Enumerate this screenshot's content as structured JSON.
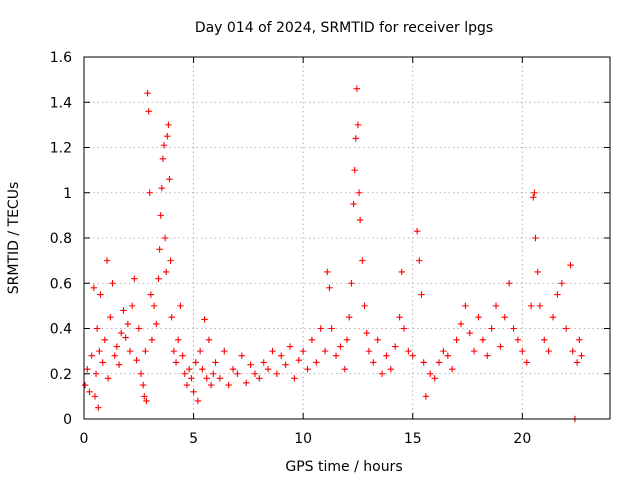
{
  "chart_data": {
    "type": "scatter",
    "title": "Day 014 of 2024, SRMTID for receiver lpgs",
    "xlabel": "GPS time / hours",
    "ylabel": "SRMTID / TECUs",
    "xlim": [
      0,
      24
    ],
    "ylim": [
      0,
      1.6
    ],
    "xticks": [
      0,
      5,
      10,
      15,
      20
    ],
    "yticks": [
      0,
      0.2,
      0.4,
      0.6,
      0.8,
      1,
      1.2,
      1.4,
      1.6
    ],
    "xtick_labels": [
      "0",
      "5",
      "10",
      "15",
      "20"
    ],
    "ytick_labels": [
      "0",
      "0.2",
      "0.4",
      "0.6",
      "0.8",
      "1",
      "1.2",
      "1.4",
      "1.6"
    ],
    "grid": true,
    "marker": "+",
    "color": "#ff0000",
    "series": [
      {
        "name": "SRMTID",
        "points": [
          [
            0.05,
            0.15
          ],
          [
            0.15,
            0.22
          ],
          [
            0.25,
            0.12
          ],
          [
            0.35,
            0.28
          ],
          [
            0.45,
            0.58
          ],
          [
            0.5,
            0.1
          ],
          [
            0.55,
            0.2
          ],
          [
            0.6,
            0.4
          ],
          [
            0.65,
            0.05
          ],
          [
            0.7,
            0.3
          ],
          [
            0.75,
            0.55
          ],
          [
            0.85,
            0.25
          ],
          [
            0.95,
            0.35
          ],
          [
            1.05,
            0.7
          ],
          [
            1.1,
            0.18
          ],
          [
            1.2,
            0.45
          ],
          [
            1.3,
            0.6
          ],
          [
            1.4,
            0.28
          ],
          [
            1.5,
            0.32
          ],
          [
            1.6,
            0.24
          ],
          [
            1.7,
            0.38
          ],
          [
            1.8,
            0.48
          ],
          [
            1.9,
            0.36
          ],
          [
            2.0,
            0.42
          ],
          [
            2.1,
            0.3
          ],
          [
            2.2,
            0.5
          ],
          [
            2.3,
            0.62
          ],
          [
            2.4,
            0.26
          ],
          [
            2.5,
            0.4
          ],
          [
            2.6,
            0.2
          ],
          [
            2.7,
            0.15
          ],
          [
            2.75,
            0.1
          ],
          [
            2.8,
            0.3
          ],
          [
            2.85,
            0.08
          ],
          [
            2.9,
            1.44
          ],
          [
            2.95,
            1.36
          ],
          [
            3.0,
            1.0
          ],
          [
            3.05,
            0.55
          ],
          [
            3.1,
            0.35
          ],
          [
            3.2,
            0.5
          ],
          [
            3.3,
            0.42
          ],
          [
            3.4,
            0.62
          ],
          [
            3.45,
            0.75
          ],
          [
            3.5,
            0.9
          ],
          [
            3.55,
            1.02
          ],
          [
            3.6,
            1.15
          ],
          [
            3.65,
            1.21
          ],
          [
            3.7,
            0.8
          ],
          [
            3.75,
            0.65
          ],
          [
            3.8,
            1.25
          ],
          [
            3.85,
            1.3
          ],
          [
            3.9,
            1.06
          ],
          [
            3.95,
            0.7
          ],
          [
            4.0,
            0.45
          ],
          [
            4.1,
            0.3
          ],
          [
            4.2,
            0.25
          ],
          [
            4.3,
            0.35
          ],
          [
            4.4,
            0.5
          ],
          [
            4.5,
            0.28
          ],
          [
            4.6,
            0.2
          ],
          [
            4.7,
            0.15
          ],
          [
            4.8,
            0.22
          ],
          [
            4.9,
            0.18
          ],
          [
            5.0,
            0.12
          ],
          [
            5.1,
            0.25
          ],
          [
            5.2,
            0.08
          ],
          [
            5.3,
            0.3
          ],
          [
            5.4,
            0.22
          ],
          [
            5.5,
            0.44
          ],
          [
            5.6,
            0.18
          ],
          [
            5.7,
            0.35
          ],
          [
            5.8,
            0.15
          ],
          [
            5.9,
            0.2
          ],
          [
            6.0,
            0.25
          ],
          [
            6.2,
            0.18
          ],
          [
            6.4,
            0.3
          ],
          [
            6.6,
            0.15
          ],
          [
            6.8,
            0.22
          ],
          [
            7.0,
            0.2
          ],
          [
            7.2,
            0.28
          ],
          [
            7.4,
            0.16
          ],
          [
            7.6,
            0.24
          ],
          [
            7.8,
            0.2
          ],
          [
            8.0,
            0.18
          ],
          [
            8.2,
            0.25
          ],
          [
            8.4,
            0.22
          ],
          [
            8.6,
            0.3
          ],
          [
            8.8,
            0.2
          ],
          [
            9.0,
            0.28
          ],
          [
            9.2,
            0.24
          ],
          [
            9.4,
            0.32
          ],
          [
            9.6,
            0.18
          ],
          [
            9.8,
            0.26
          ],
          [
            10.0,
            0.3
          ],
          [
            10.2,
            0.22
          ],
          [
            10.4,
            0.35
          ],
          [
            10.6,
            0.25
          ],
          [
            10.8,
            0.4
          ],
          [
            11.0,
            0.3
          ],
          [
            11.1,
            0.65
          ],
          [
            11.2,
            0.58
          ],
          [
            11.3,
            0.4
          ],
          [
            11.5,
            0.28
          ],
          [
            11.7,
            0.32
          ],
          [
            11.9,
            0.22
          ],
          [
            12.0,
            0.35
          ],
          [
            12.1,
            0.45
          ],
          [
            12.2,
            0.6
          ],
          [
            12.3,
            0.95
          ],
          [
            12.35,
            1.1
          ],
          [
            12.4,
            1.24
          ],
          [
            12.45,
            1.46
          ],
          [
            12.5,
            1.3
          ],
          [
            12.55,
            1.0
          ],
          [
            12.6,
            0.88
          ],
          [
            12.7,
            0.7
          ],
          [
            12.8,
            0.5
          ],
          [
            12.9,
            0.38
          ],
          [
            13.0,
            0.3
          ],
          [
            13.2,
            0.25
          ],
          [
            13.4,
            0.35
          ],
          [
            13.6,
            0.2
          ],
          [
            13.8,
            0.28
          ],
          [
            14.0,
            0.22
          ],
          [
            14.2,
            0.32
          ],
          [
            14.4,
            0.45
          ],
          [
            14.5,
            0.65
          ],
          [
            14.6,
            0.4
          ],
          [
            14.8,
            0.3
          ],
          [
            15.0,
            0.28
          ],
          [
            15.2,
            0.83
          ],
          [
            15.3,
            0.7
          ],
          [
            15.4,
            0.55
          ],
          [
            15.5,
            0.25
          ],
          [
            15.6,
            0.1
          ],
          [
            15.8,
            0.2
          ],
          [
            16.0,
            0.18
          ],
          [
            16.2,
            0.25
          ],
          [
            16.4,
            0.3
          ],
          [
            16.6,
            0.28
          ],
          [
            16.8,
            0.22
          ],
          [
            17.0,
            0.35
          ],
          [
            17.2,
            0.42
          ],
          [
            17.4,
            0.5
          ],
          [
            17.6,
            0.38
          ],
          [
            17.8,
            0.3
          ],
          [
            18.0,
            0.45
          ],
          [
            18.2,
            0.35
          ],
          [
            18.4,
            0.28
          ],
          [
            18.6,
            0.4
          ],
          [
            18.8,
            0.5
          ],
          [
            19.0,
            0.32
          ],
          [
            19.2,
            0.45
          ],
          [
            19.4,
            0.6
          ],
          [
            19.6,
            0.4
          ],
          [
            19.8,
            0.35
          ],
          [
            20.0,
            0.3
          ],
          [
            20.2,
            0.25
          ],
          [
            20.4,
            0.5
          ],
          [
            20.5,
            0.98
          ],
          [
            20.55,
            1.0
          ],
          [
            20.6,
            0.8
          ],
          [
            20.7,
            0.65
          ],
          [
            20.8,
            0.5
          ],
          [
            21.0,
            0.35
          ],
          [
            21.2,
            0.3
          ],
          [
            21.4,
            0.45
          ],
          [
            21.6,
            0.55
          ],
          [
            21.8,
            0.6
          ],
          [
            22.0,
            0.4
          ],
          [
            22.2,
            0.68
          ],
          [
            22.3,
            0.3
          ],
          [
            22.4,
            0.0
          ],
          [
            22.5,
            0.25
          ],
          [
            22.6,
            0.35
          ],
          [
            22.7,
            0.28
          ]
        ]
      }
    ]
  }
}
